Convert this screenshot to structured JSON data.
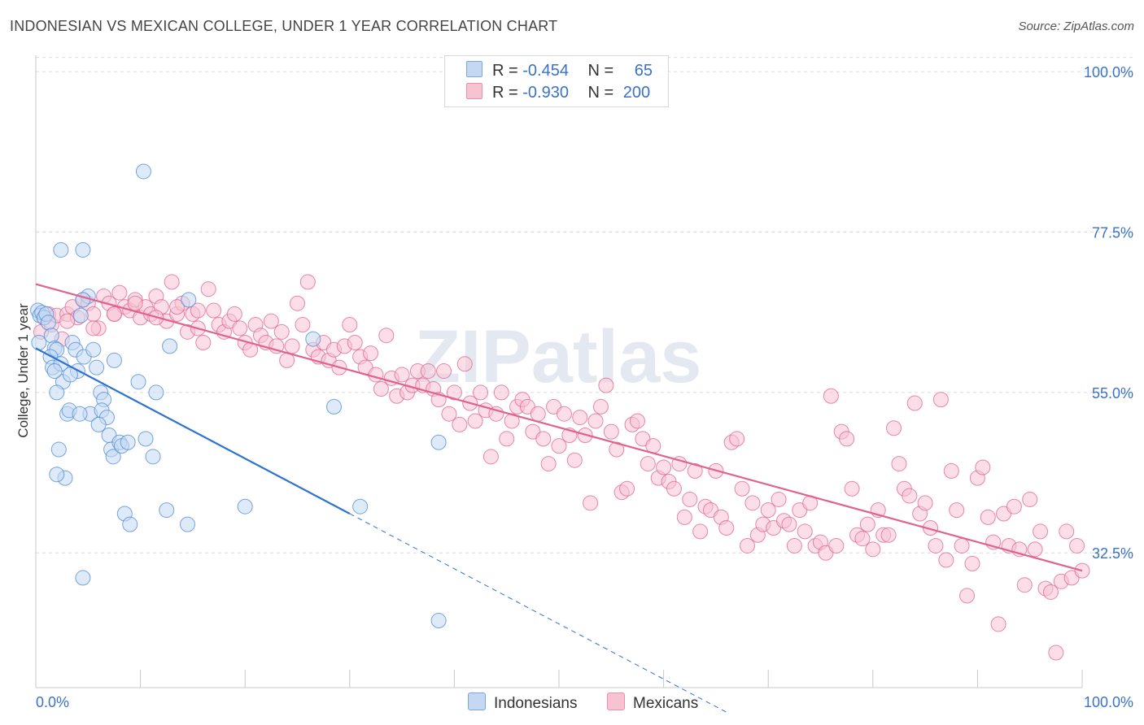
{
  "header": {
    "title": "INDONESIAN VS MEXICAN COLLEGE, UNDER 1 YEAR CORRELATION CHART",
    "source": "Source: ZipAtlas.com"
  },
  "watermark": "ZIPatlas",
  "colors": {
    "indonesians": "#4a88d4",
    "indonesians_fill": "#c4d8f3",
    "mexicans": "#e0628e",
    "mexicans_fill": "#f7c3d3",
    "axis_label": "#3a72c8",
    "grid": "#dcdcdc"
  },
  "legend": {
    "rows": [
      {
        "r_label": "R =",
        "r_value": "-0.454",
        "n_label": "N =",
        "n_value": "65"
      },
      {
        "r_label": "R =",
        "r_value": "-0.930",
        "n_label": "N =",
        "n_value": "200"
      }
    ],
    "bottom": [
      "Indonesians",
      "Mexicans"
    ]
  },
  "chart_data": {
    "type": "scatter",
    "ylabel": "College, Under 1 year",
    "x_tick_labels": [
      "0.0%",
      "100.0%"
    ],
    "y_tick_labels": [
      "100.0%",
      "77.5%",
      "55.0%",
      "32.5%"
    ],
    "y_ticks": [
      100.0,
      77.5,
      55.0,
      32.5
    ],
    "xlim": [
      0,
      100
    ],
    "ylim": [
      13.6,
      102.3
    ],
    "grid": true,
    "legend_position": "top-center",
    "series": [
      {
        "name": "Indonesians",
        "r": -0.454,
        "n": 65,
        "trend": {
          "x0": 0,
          "y0": 61.2,
          "x1": 30,
          "y1": 38.0,
          "dashed_to_x": 66
        },
        "points": [
          [
            0.2,
            66.5
          ],
          [
            0.4,
            65.8
          ],
          [
            0.6,
            66.2
          ],
          [
            0.8,
            65.5
          ],
          [
            1.0,
            66.0
          ],
          [
            1.2,
            64.8
          ],
          [
            0.3,
            62.0
          ],
          [
            1.5,
            63.0
          ],
          [
            1.8,
            61.2
          ],
          [
            2.0,
            61.0
          ],
          [
            1.4,
            60.0
          ],
          [
            1.6,
            58.5
          ],
          [
            2.4,
            59.0
          ],
          [
            2.6,
            56.5
          ],
          [
            3.5,
            62.0
          ],
          [
            3.8,
            61.0
          ],
          [
            4.0,
            58.0
          ],
          [
            4.3,
            65.8
          ],
          [
            4.6,
            60.0
          ],
          [
            5.0,
            68.5
          ],
          [
            4.5,
            68.0
          ],
          [
            5.5,
            61.0
          ],
          [
            5.8,
            58.5
          ],
          [
            5.2,
            52.0
          ],
          [
            6.2,
            55.0
          ],
          [
            6.5,
            54.0
          ],
          [
            6.3,
            52.5
          ],
          [
            6.8,
            51.5
          ],
          [
            7.5,
            59.5
          ],
          [
            7.0,
            49.0
          ],
          [
            7.2,
            47.0
          ],
          [
            7.4,
            46.0
          ],
          [
            8.0,
            48.0
          ],
          [
            8.2,
            47.5
          ],
          [
            8.8,
            48.0
          ],
          [
            9.8,
            56.5
          ],
          [
            10.5,
            48.5
          ],
          [
            10.3,
            86.0
          ],
          [
            11.2,
            46.0
          ],
          [
            11.5,
            55.0
          ],
          [
            12.5,
            38.5
          ],
          [
            12.8,
            61.5
          ],
          [
            14.5,
            36.5
          ],
          [
            14.6,
            68.0
          ],
          [
            4.5,
            75.0
          ],
          [
            2.4,
            75.0
          ],
          [
            2.0,
            55.0
          ],
          [
            3.0,
            52.0
          ],
          [
            1.8,
            58.0
          ],
          [
            3.2,
            52.5
          ],
          [
            2.2,
            47.0
          ],
          [
            2.8,
            43.0
          ],
          [
            3.3,
            57.5
          ],
          [
            4.2,
            52.0
          ],
          [
            6.0,
            50.5
          ],
          [
            20.0,
            39.0
          ],
          [
            26.5,
            62.5
          ],
          [
            28.5,
            53.0
          ],
          [
            31.0,
            39.0
          ],
          [
            38.5,
            48.0
          ],
          [
            38.5,
            23.0
          ],
          [
            4.5,
            29.0
          ],
          [
            2.0,
            43.5
          ],
          [
            8.5,
            38.0
          ],
          [
            9.0,
            36.5
          ]
        ]
      },
      {
        "name": "Mexicans",
        "r": -0.93,
        "n": 200,
        "trend": {
          "x0": 0,
          "y0": 70.2,
          "x1": 100,
          "y1": 30.0
        },
        "points": [
          [
            0.5,
            63.5
          ],
          [
            0.8,
            65.5
          ],
          [
            1.2,
            66.0
          ],
          [
            1.5,
            64.5
          ],
          [
            2.0,
            65.8
          ],
          [
            2.5,
            62.5
          ],
          [
            3.0,
            66.0
          ],
          [
            3.5,
            67.0
          ],
          [
            4.0,
            65.5
          ],
          [
            4.5,
            68.0
          ],
          [
            5.0,
            67.5
          ],
          [
            5.5,
            66.0
          ],
          [
            6.0,
            64.0
          ],
          [
            6.5,
            68.5
          ],
          [
            7.0,
            67.5
          ],
          [
            7.5,
            66.0
          ],
          [
            8.0,
            69.0
          ],
          [
            8.5,
            67.0
          ],
          [
            9.0,
            66.5
          ],
          [
            9.5,
            68.0
          ],
          [
            10.0,
            65.5
          ],
          [
            10.5,
            67.0
          ],
          [
            11.0,
            66.0
          ],
          [
            11.5,
            68.5
          ],
          [
            12.0,
            67.0
          ],
          [
            12.5,
            65.0
          ],
          [
            13.0,
            70.5
          ],
          [
            13.5,
            66.0
          ],
          [
            14.0,
            67.5
          ],
          [
            14.5,
            63.5
          ],
          [
            15.0,
            66.0
          ],
          [
            15.5,
            64.0
          ],
          [
            16.0,
            62.0
          ],
          [
            16.5,
            69.5
          ],
          [
            17.0,
            66.5
          ],
          [
            17.5,
            64.5
          ],
          [
            18.0,
            63.5
          ],
          [
            18.5,
            65.0
          ],
          [
            19.0,
            66.0
          ],
          [
            19.5,
            64.0
          ],
          [
            20.0,
            62.0
          ],
          [
            20.5,
            61.0
          ],
          [
            21.0,
            64.5
          ],
          [
            21.5,
            63.0
          ],
          [
            22.0,
            62.0
          ],
          [
            22.5,
            65.0
          ],
          [
            23.0,
            61.5
          ],
          [
            23.5,
            63.5
          ],
          [
            24.0,
            59.5
          ],
          [
            24.5,
            61.5
          ],
          [
            25.0,
            67.5
          ],
          [
            25.5,
            64.5
          ],
          [
            26.0,
            70.5
          ],
          [
            26.5,
            61.0
          ],
          [
            27.0,
            60.0
          ],
          [
            27.5,
            62.0
          ],
          [
            28.0,
            59.5
          ],
          [
            28.5,
            61.0
          ],
          [
            29.0,
            58.5
          ],
          [
            29.5,
            61.5
          ],
          [
            30.0,
            64.5
          ],
          [
            30.5,
            62.0
          ],
          [
            31.0,
            60.0
          ],
          [
            31.5,
            58.5
          ],
          [
            32.0,
            60.5
          ],
          [
            32.5,
            57.5
          ],
          [
            33.0,
            55.5
          ],
          [
            33.5,
            63.0
          ],
          [
            34.0,
            57.0
          ],
          [
            34.5,
            54.5
          ],
          [
            35.0,
            57.5
          ],
          [
            35.5,
            55.0
          ],
          [
            36.0,
            56.0
          ],
          [
            36.5,
            58.0
          ],
          [
            37.0,
            56.0
          ],
          [
            37.5,
            58.0
          ],
          [
            38.0,
            55.5
          ],
          [
            38.5,
            54.0
          ],
          [
            39.0,
            58.0
          ],
          [
            39.5,
            52.0
          ],
          [
            40.0,
            55.0
          ],
          [
            40.5,
            50.5
          ],
          [
            41.0,
            59.0
          ],
          [
            41.5,
            53.5
          ],
          [
            42.0,
            51.0
          ],
          [
            42.5,
            55.0
          ],
          [
            43.0,
            52.5
          ],
          [
            43.5,
            46.0
          ],
          [
            44.0,
            52.0
          ],
          [
            44.5,
            55.0
          ],
          [
            45.0,
            48.5
          ],
          [
            45.5,
            51.0
          ],
          [
            46.0,
            53.0
          ],
          [
            46.5,
            54.0
          ],
          [
            47.0,
            53.0
          ],
          [
            47.5,
            49.5
          ],
          [
            48.0,
            52.0
          ],
          [
            48.5,
            48.5
          ],
          [
            49.0,
            45.0
          ],
          [
            49.5,
            53.0
          ],
          [
            50.0,
            47.5
          ],
          [
            50.5,
            52.0
          ],
          [
            51.0,
            49.0
          ],
          [
            51.5,
            45.5
          ],
          [
            52.0,
            51.5
          ],
          [
            52.5,
            49.0
          ],
          [
            53.0,
            39.5
          ],
          [
            53.5,
            51.0
          ],
          [
            54.0,
            53.0
          ],
          [
            54.5,
            56.0
          ],
          [
            55.0,
            49.5
          ],
          [
            55.5,
            47.0
          ],
          [
            56.0,
            41.0
          ],
          [
            56.5,
            41.5
          ],
          [
            57.0,
            50.5
          ],
          [
            57.5,
            51.0
          ],
          [
            58.0,
            48.5
          ],
          [
            58.5,
            45.0
          ],
          [
            59.0,
            47.5
          ],
          [
            59.5,
            43.0
          ],
          [
            60.0,
            44.5
          ],
          [
            60.5,
            42.5
          ],
          [
            61.0,
            41.5
          ],
          [
            61.5,
            45.0
          ],
          [
            62.0,
            37.5
          ],
          [
            62.5,
            40.0
          ],
          [
            63.0,
            44.0
          ],
          [
            63.5,
            35.5
          ],
          [
            64.0,
            39.0
          ],
          [
            64.5,
            38.5
          ],
          [
            65.0,
            44.0
          ],
          [
            65.5,
            37.5
          ],
          [
            66.0,
            36.0
          ],
          [
            66.5,
            48.0
          ],
          [
            67.0,
            48.5
          ],
          [
            67.5,
            41.5
          ],
          [
            68.0,
            33.5
          ],
          [
            68.5,
            39.5
          ],
          [
            69.0,
            35.0
          ],
          [
            69.5,
            36.5
          ],
          [
            70.0,
            38.5
          ],
          [
            70.5,
            36.0
          ],
          [
            71.0,
            40.0
          ],
          [
            71.5,
            37.0
          ],
          [
            72.0,
            36.5
          ],
          [
            72.5,
            33.5
          ],
          [
            73.0,
            38.5
          ],
          [
            73.5,
            35.5
          ],
          [
            74.0,
            39.5
          ],
          [
            74.5,
            33.5
          ],
          [
            75.0,
            34.0
          ],
          [
            75.5,
            32.5
          ],
          [
            76.0,
            54.5
          ],
          [
            76.5,
            33.5
          ],
          [
            77.0,
            49.5
          ],
          [
            77.5,
            48.5
          ],
          [
            78.0,
            41.5
          ],
          [
            78.5,
            35.0
          ],
          [
            79.0,
            34.5
          ],
          [
            79.5,
            36.5
          ],
          [
            80.0,
            33.0
          ],
          [
            80.5,
            38.5
          ],
          [
            81.0,
            35.0
          ],
          [
            81.5,
            35.0
          ],
          [
            82.0,
            50.0
          ],
          [
            82.5,
            45.0
          ],
          [
            83.0,
            41.5
          ],
          [
            83.5,
            40.5
          ],
          [
            84.0,
            53.5
          ],
          [
            84.5,
            38.0
          ],
          [
            85.0,
            39.5
          ],
          [
            85.5,
            36.0
          ],
          [
            86.0,
            33.5
          ],
          [
            86.5,
            54.0
          ],
          [
            87.0,
            31.5
          ],
          [
            87.5,
            44.0
          ],
          [
            88.0,
            38.5
          ],
          [
            88.5,
            33.5
          ],
          [
            89.0,
            26.5
          ],
          [
            89.5,
            31.0
          ],
          [
            90.0,
            43.0
          ],
          [
            90.5,
            44.5
          ],
          [
            91.0,
            37.5
          ],
          [
            91.5,
            34.0
          ],
          [
            92.0,
            22.5
          ],
          [
            92.5,
            38.0
          ],
          [
            93.0,
            33.5
          ],
          [
            93.5,
            39.0
          ],
          [
            94.0,
            33.0
          ],
          [
            94.5,
            28.0
          ],
          [
            95.0,
            40.0
          ],
          [
            95.5,
            33.0
          ],
          [
            96.0,
            35.5
          ],
          [
            96.5,
            27.5
          ],
          [
            97.0,
            27.0
          ],
          [
            97.5,
            18.5
          ],
          [
            98.0,
            28.5
          ],
          [
            98.5,
            35.5
          ],
          [
            99.0,
            29.0
          ],
          [
            99.5,
            33.5
          ],
          [
            100.0,
            30.0
          ],
          [
            3.0,
            65.0
          ],
          [
            5.5,
            64.0
          ],
          [
            7.5,
            66.0
          ],
          [
            9.5,
            67.5
          ],
          [
            11.5,
            65.5
          ],
          [
            13.5,
            67.0
          ],
          [
            15.5,
            66.5
          ]
        ]
      }
    ]
  }
}
